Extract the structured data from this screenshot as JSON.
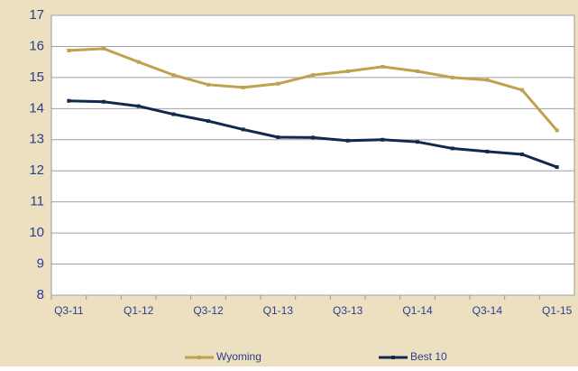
{
  "chart_data": {
    "type": "line",
    "categories": [
      "Q3-11",
      null,
      "Q1-12",
      null,
      "Q3-12",
      null,
      "Q1-13",
      null,
      "Q3-13",
      null,
      "Q1-14",
      null,
      "Q3-14",
      null,
      "Q1-15"
    ],
    "series": [
      {
        "name": "Wyoming",
        "color": "#bfa14f",
        "values": [
          15.87,
          15.93,
          15.5,
          15.08,
          14.77,
          14.68,
          14.8,
          15.08,
          15.2,
          15.35,
          15.2,
          15.0,
          14.92,
          14.6,
          13.3
        ]
      },
      {
        "name": "Best 10",
        "color": "#0f2a4e",
        "values": [
          14.25,
          14.22,
          14.08,
          13.82,
          13.6,
          13.33,
          13.08,
          13.07,
          12.97,
          13.0,
          12.93,
          12.72,
          12.62,
          12.53,
          12.12
        ]
      }
    ],
    "ylim": [
      8,
      17
    ],
    "yticks": [
      8,
      9,
      10,
      11,
      12,
      13,
      14,
      15,
      16,
      17
    ],
    "grid": true,
    "legend": "bottom"
  }
}
